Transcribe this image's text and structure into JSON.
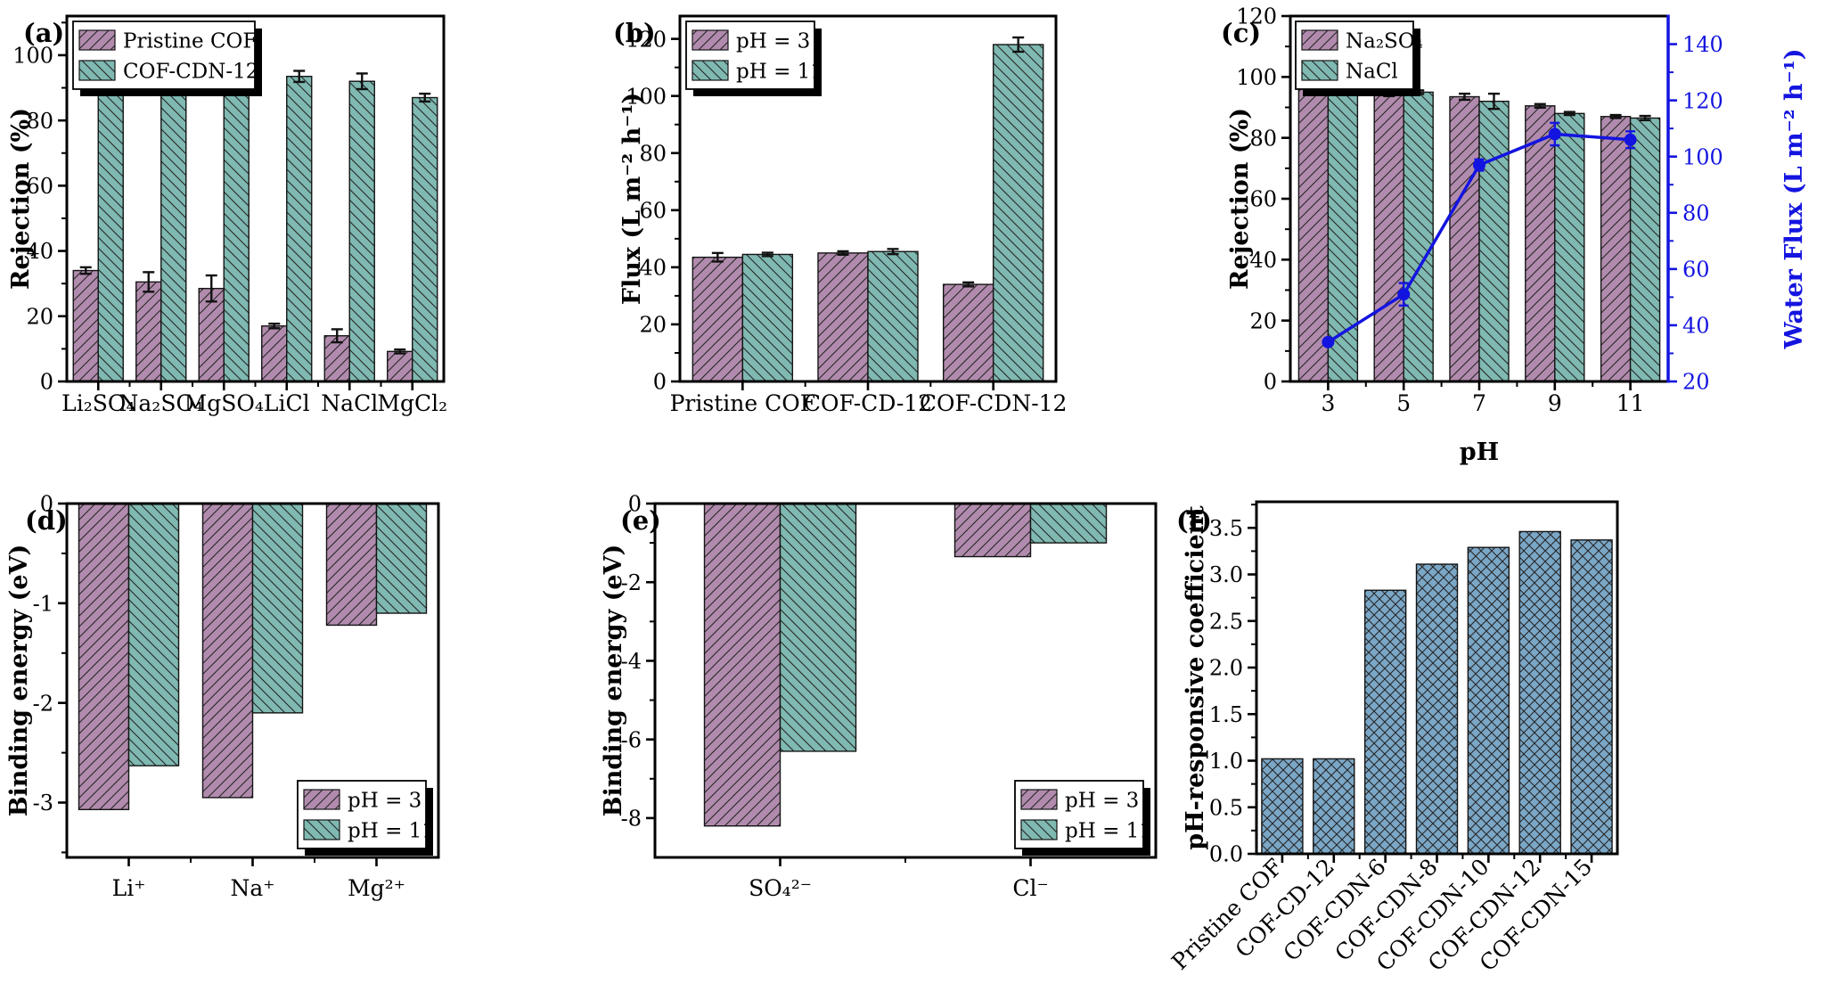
{
  "figure": {
    "background": "#ffffff",
    "panel_letters": [
      "(a)",
      "(b)",
      "(c)",
      "(d)",
      "(e)",
      "(f)"
    ]
  },
  "colors": {
    "series_purple": "#b18bad",
    "series_teal": "#7fb9b1",
    "series_steelblue": "#7ba7c7",
    "hatch_line": "#262626",
    "bar_edge": "#141414",
    "flux_blue": "#1414e0",
    "frame_black": "#000000"
  },
  "chart_data": [
    {
      "id": "a",
      "panel_label": "(a)",
      "type": "bar",
      "ylabel": "Rejection (%)",
      "ylim": [
        0,
        112
      ],
      "yticks": [
        0,
        20,
        40,
        60,
        80,
        100
      ],
      "y_minor_step": 10,
      "y_format": "int",
      "grid": false,
      "categories": [
        "Li₂SO₄",
        "Na₂SO₄",
        "MgSO₄",
        "LiCl",
        "NaCl",
        "MgCl₂"
      ],
      "series": [
        {
          "name": "Pristine COF",
          "color": "#b18bad",
          "hatch": "fwd",
          "values": [
            34,
            30.5,
            28.5,
            17,
            14,
            9.2
          ],
          "errors": [
            1,
            3,
            4,
            0.7,
            2,
            0.6
          ]
        },
        {
          "name": "COF-CDN-12",
          "color": "#7fb9b1",
          "hatch": "bwd",
          "values": [
            94,
            93.5,
            92.5,
            93.5,
            92,
            87
          ],
          "errors": [
            0.7,
            1,
            0.4,
            1.7,
            2.4,
            1.2
          ]
        }
      ],
      "legend": {
        "position": "top-left",
        "entries": [
          "Pristine COF",
          "COF-CDN-12"
        ]
      }
    },
    {
      "id": "b",
      "panel_label": "(b)",
      "type": "bar",
      "ylabel": "Flux (L m⁻² h⁻¹)",
      "ylim": [
        0,
        128
      ],
      "yticks": [
        0,
        20,
        40,
        60,
        80,
        100,
        120
      ],
      "y_minor_step": 10,
      "y_format": "int",
      "grid": false,
      "categories": [
        "Pristine COF",
        "COF-CD-12",
        "COF-CDN-12"
      ],
      "series": [
        {
          "name": "pH = 3",
          "color": "#b18bad",
          "hatch": "fwd",
          "values": [
            43.5,
            45,
            34
          ],
          "errors": [
            1.5,
            0.6,
            0.7
          ]
        },
        {
          "name": "pH = 11",
          "color": "#7fb9b1",
          "hatch": "bwd",
          "values": [
            44.5,
            45.5,
            118
          ],
          "errors": [
            0.6,
            0.9,
            2.5
          ]
        }
      ],
      "legend": {
        "position": "top-left",
        "entries": [
          "pH = 3",
          "pH = 11"
        ]
      }
    },
    {
      "id": "c",
      "panel_label": "(c)",
      "type": "bar+line",
      "xlabel": "pH",
      "ylabel": "Rejection (%)",
      "ylim": [
        0,
        120
      ],
      "yticks": [
        0,
        20,
        40,
        60,
        80,
        100,
        120
      ],
      "y_minor_step": 10,
      "y_format": "int",
      "grid": false,
      "ylabel_right": "Water Flux (L m⁻² h⁻¹)",
      "ylim_right": [
        20,
        150
      ],
      "yticks_right": [
        20,
        40,
        60,
        80,
        100,
        120,
        140
      ],
      "y_minor_step_right": 10,
      "categories": [
        "3",
        "5",
        "7",
        "9",
        "11"
      ],
      "series": [
        {
          "name": "Na₂SO₄",
          "color": "#b18bad",
          "hatch": "fwd",
          "values": [
            97,
            95.5,
            93.5,
            90.5,
            87
          ],
          "errors": [
            0.5,
            1.8,
            1,
            0.6,
            0.5
          ]
        },
        {
          "name": "NaCl",
          "color": "#7fb9b1",
          "hatch": "bwd",
          "values": [
            96.5,
            95,
            92,
            88,
            86.5
          ],
          "errors": [
            0.7,
            0.6,
            2.5,
            0.5,
            0.7
          ]
        }
      ],
      "line_series": {
        "name": "Water Flux",
        "axis": "right",
        "color": "#1414e0",
        "values": [
          34,
          51,
          97,
          108,
          106
        ],
        "errors": [
          1,
          4,
          2,
          4,
          3
        ]
      },
      "legend": {
        "position": "top-left",
        "entries": [
          "Na₂SO₄",
          "NaCl"
        ]
      }
    },
    {
      "id": "d",
      "panel_label": "(d)",
      "type": "bar",
      "ylabel": "Binding energy (eV)",
      "ylim": [
        -3.55,
        0
      ],
      "yticks": [
        0,
        -1,
        -2,
        -3
      ],
      "y_minor_step": 0.5,
      "y_format": "int",
      "grid": false,
      "categories": [
        "Li⁺",
        "Na⁺",
        "Mg²⁺"
      ],
      "series": [
        {
          "name": "pH = 3",
          "color": "#b18bad",
          "hatch": "fwd",
          "values": [
            -3.07,
            -2.95,
            -1.22
          ],
          "errors": [
            0,
            0,
            0
          ]
        },
        {
          "name": "pH = 11",
          "color": "#7fb9b1",
          "hatch": "bwd",
          "values": [
            -2.63,
            -2.1,
            -1.1
          ],
          "errors": [
            0,
            0,
            0
          ]
        }
      ],
      "legend": {
        "position": "bottom-right",
        "entries": [
          "pH = 3",
          "pH = 11"
        ]
      }
    },
    {
      "id": "e",
      "panel_label": "(e)",
      "type": "bar",
      "ylabel": "Binding energy (eV)",
      "ylim": [
        -9.0,
        0
      ],
      "yticks": [
        0,
        -2,
        -4,
        -6,
        -8
      ],
      "y_minor_step": 1,
      "y_format": "int",
      "grid": false,
      "categories": [
        "SO₄²⁻",
        "Cl⁻"
      ],
      "series": [
        {
          "name": "pH = 3",
          "color": "#b18bad",
          "hatch": "fwd",
          "values": [
            -8.2,
            -1.35
          ],
          "errors": [
            0,
            0
          ]
        },
        {
          "name": "pH = 11",
          "color": "#7fb9b1",
          "hatch": "bwd",
          "values": [
            -6.3,
            -1.0
          ],
          "errors": [
            0,
            0
          ]
        }
      ],
      "legend": {
        "position": "bottom-right",
        "entries": [
          "pH = 3",
          "pH = 11"
        ]
      }
    },
    {
      "id": "f",
      "panel_label": "(f)",
      "type": "bar",
      "ylabel": "pH-responsive coefficient",
      "ylim": [
        0,
        3.78
      ],
      "yticks": [
        0,
        0.5,
        1.0,
        1.5,
        2.0,
        2.5,
        3.0,
        3.5
      ],
      "y_minor_step": 0.25,
      "y_format": "one-decimal",
      "grid": false,
      "categories": [
        "Pristine COF",
        "COF-CD-12",
        "COF-CDN-6",
        "COF-CDN-8",
        "COF-CDN-10",
        "COF-CDN-12",
        "COF-CDN-15"
      ],
      "rotate_category_labels": 45,
      "series": [
        {
          "name": "pH-responsive coefficient",
          "color": "#7ba7c7",
          "hatch": "cross",
          "values": [
            1.02,
            1.02,
            2.83,
            3.11,
            3.29,
            3.46,
            3.37
          ],
          "errors": [
            0,
            0,
            0,
            0,
            0,
            0,
            0
          ]
        }
      ],
      "legend": null
    }
  ]
}
